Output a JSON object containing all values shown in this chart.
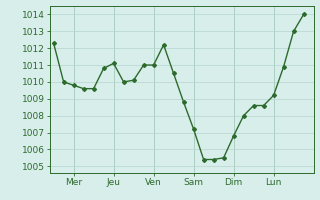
{
  "x_values": [
    0,
    0.5,
    1,
    1.5,
    2,
    2.5,
    3,
    3.5,
    4,
    4.5,
    5,
    5.5,
    6,
    6.5,
    7,
    7.5,
    8,
    8.5,
    9,
    9.5,
    10,
    10.5,
    11,
    11.5,
    12,
    12.5
  ],
  "y_values": [
    1012.3,
    1010.0,
    1009.8,
    1009.6,
    1009.6,
    1010.8,
    1011.1,
    1010.0,
    1010.1,
    1011.0,
    1011.0,
    1012.2,
    1010.5,
    1008.8,
    1007.2,
    1005.4,
    1005.4,
    1005.5,
    1006.8,
    1008.0,
    1008.6,
    1008.6,
    1009.2,
    1010.9,
    1013.0,
    1014.0
  ],
  "x_ticks": [
    1,
    3,
    5,
    7,
    9,
    11
  ],
  "x_tick_labels": [
    "Mer",
    "Jeu",
    "Ven",
    "Sam",
    "Dim",
    "Lun"
  ],
  "y_ticks": [
    1005,
    1006,
    1007,
    1008,
    1009,
    1010,
    1011,
    1012,
    1013,
    1014
  ],
  "ylim": [
    1004.6,
    1014.5
  ],
  "xlim": [
    -0.2,
    13.0
  ],
  "line_color": "#2d6a2d",
  "marker": "D",
  "marker_size": 2.0,
  "line_width": 1.0,
  "bg_color": "#d8eeea",
  "grid_color": "#b5d5d0",
  "tick_label_fontsize": 6.5
}
